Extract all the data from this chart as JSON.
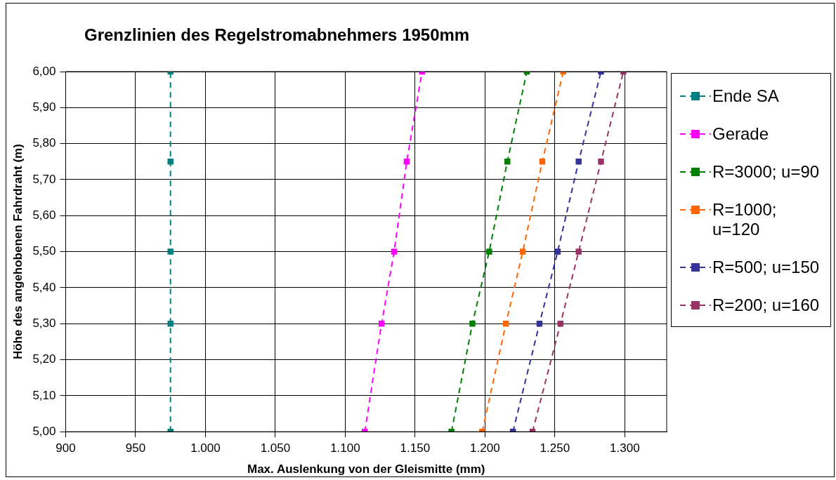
{
  "chart_data": {
    "type": "line",
    "title": "Grenzlinien des Regelstromabnehmers 1950mm",
    "xlabel": "Max. Auslenkung von der Gleismitte (mm)",
    "ylabel": "Höhe des angehobenen Fahrdraht (m)",
    "xlim": [
      900,
      1330
    ],
    "xticks": [
      900,
      950,
      {
        "value": 1000,
        "label": "1.000"
      },
      {
        "value": 1050,
        "label": "1.050"
      },
      {
        "value": 1100,
        "label": "1.100"
      },
      {
        "value": 1150,
        "label": "1.150"
      },
      {
        "value": 1200,
        "label": "1.200"
      },
      {
        "value": 1250,
        "label": "1.250"
      },
      {
        "value": 1300,
        "label": "1.300"
      }
    ],
    "ylim": [
      5.0,
      6.0
    ],
    "yticks": [
      {
        "value": 5.0,
        "label": "5,00"
      },
      {
        "value": 5.1,
        "label": "5,10"
      },
      {
        "value": 5.2,
        "label": "5,20"
      },
      {
        "value": 5.3,
        "label": "5,30"
      },
      {
        "value": 5.4,
        "label": "5,40"
      },
      {
        "value": 5.5,
        "label": "5,50"
      },
      {
        "value": 5.6,
        "label": "5,60"
      },
      {
        "value": 5.7,
        "label": "5,70"
      },
      {
        "value": 5.8,
        "label": "5,80"
      },
      {
        "value": 5.9,
        "label": "5,90"
      },
      {
        "value": 6.0,
        "label": "6,00"
      }
    ],
    "grid": true,
    "legend": "right",
    "marker": "square",
    "line_style": "dashed",
    "series": [
      {
        "name": "Ende SA",
        "color": "#008080",
        "x": [
          975,
          975,
          975,
          975,
          975
        ],
        "values": [
          5.0,
          5.3,
          5.5,
          5.75,
          6.0
        ]
      },
      {
        "name": "Gerade",
        "color": "#ff00ff",
        "x": [
          1114,
          1126,
          1135,
          1144,
          1155
        ],
        "values": [
          5.0,
          5.3,
          5.5,
          5.75,
          6.0
        ]
      },
      {
        "name": "R=3000; u=90",
        "color": "#008000",
        "x": [
          1176,
          1191,
          1203,
          1216,
          1230
        ],
        "values": [
          5.0,
          5.3,
          5.5,
          5.75,
          6.0
        ]
      },
      {
        "name": "R=1000; u=120",
        "color": "#ff6600",
        "x": [
          1198,
          1215,
          1227,
          1241,
          1256
        ],
        "values": [
          5.0,
          5.3,
          5.5,
          5.75,
          6.0
        ]
      },
      {
        "name": "R=500; u=150",
        "color": "#333399",
        "x": [
          1220,
          1239,
          1252,
          1267,
          1283
        ],
        "values": [
          5.0,
          5.3,
          5.5,
          5.75,
          6.0
        ]
      },
      {
        "name": "R=200; u=160",
        "color": "#993366",
        "x": [
          1234,
          1254,
          1267,
          1283,
          1299
        ],
        "values": [
          5.0,
          5.3,
          5.5,
          5.75,
          6.0
        ]
      }
    ]
  }
}
